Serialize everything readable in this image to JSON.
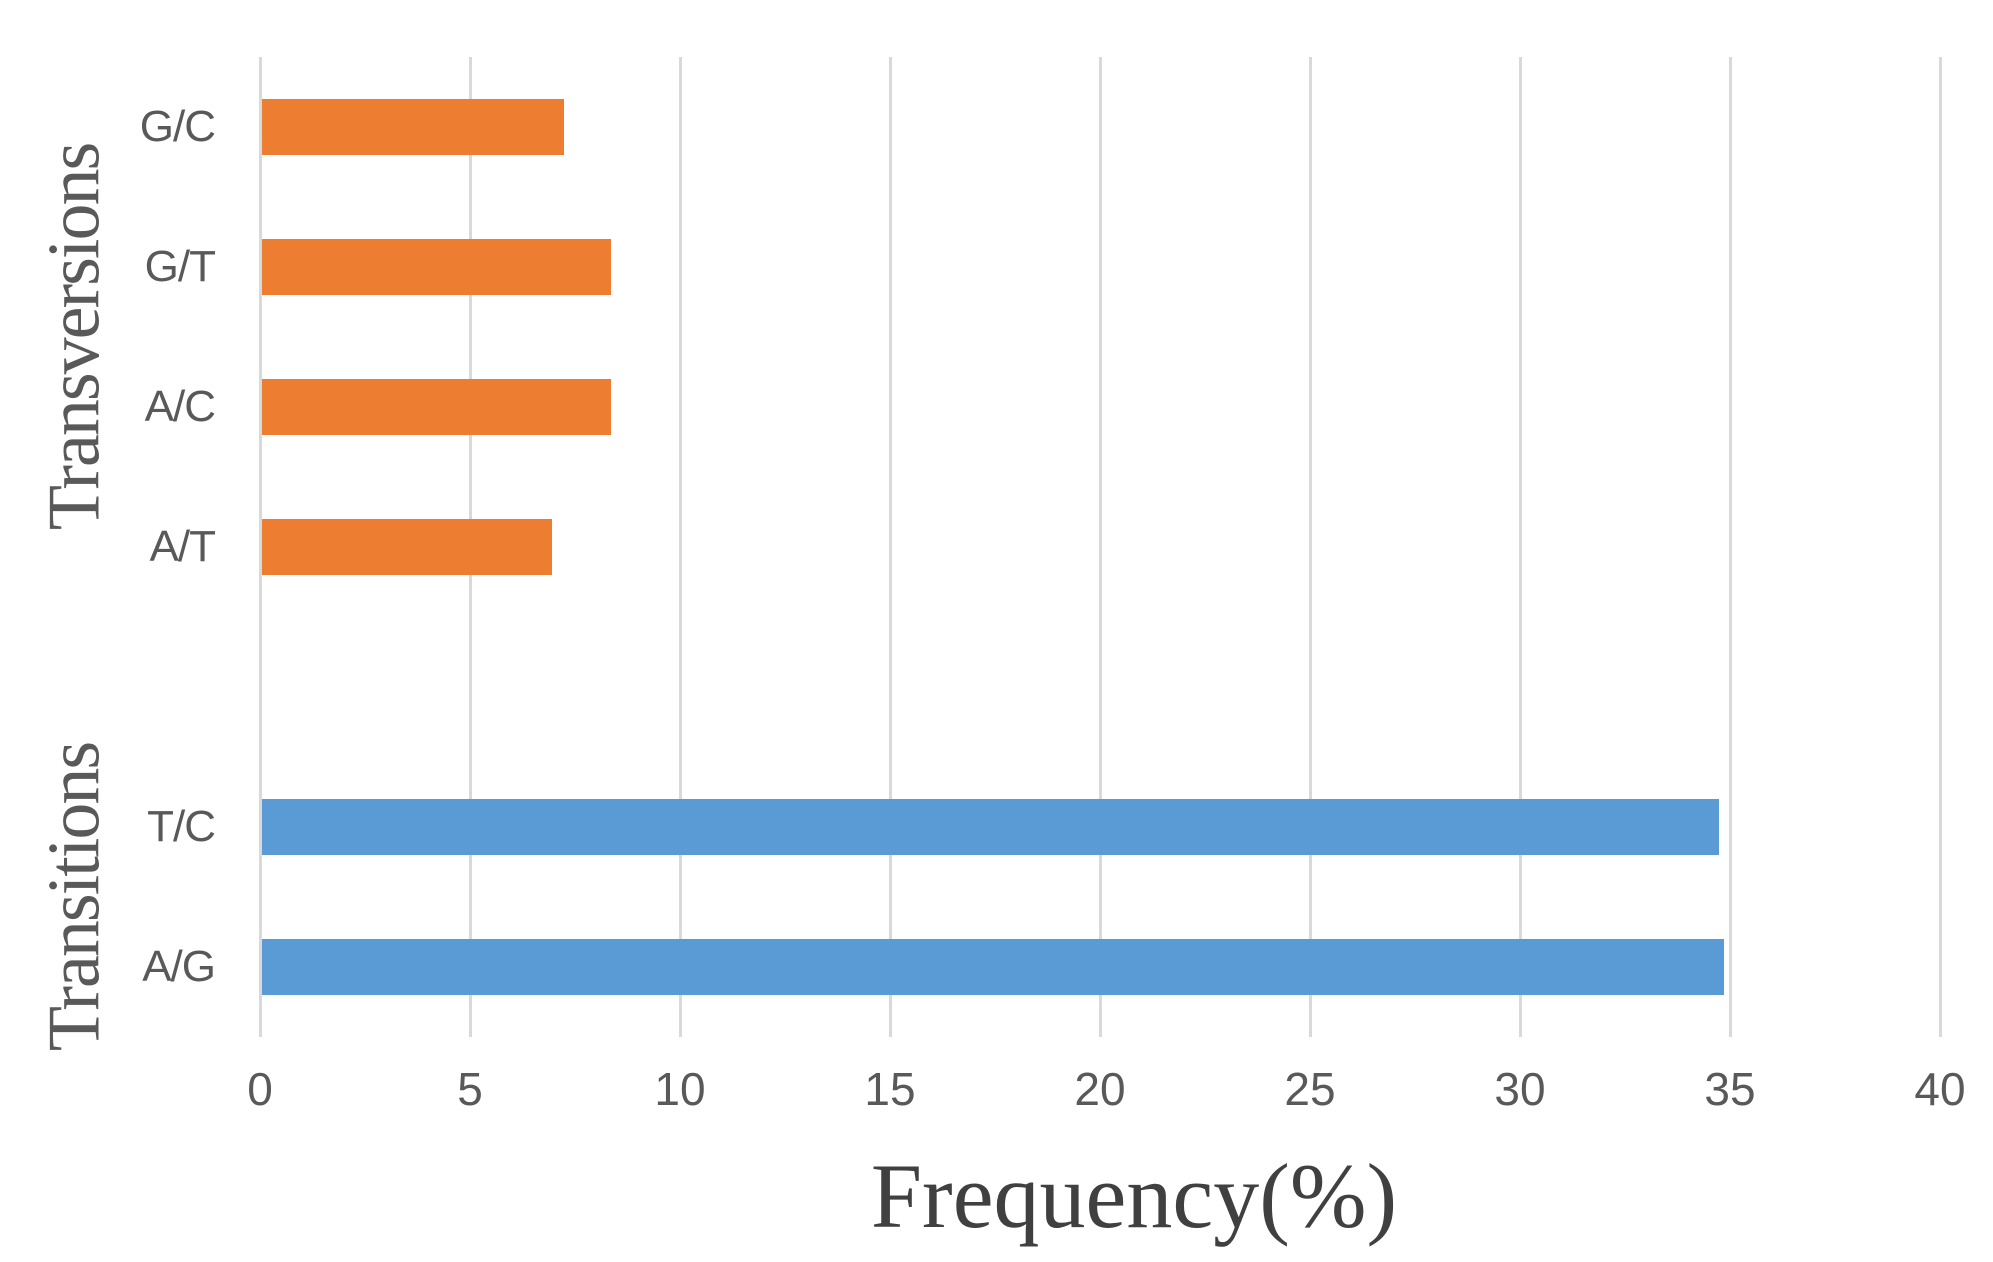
{
  "chart_data": {
    "type": "bar",
    "orientation": "horizontal",
    "title": "",
    "xlabel": "Frequency(%)",
    "ylabel": "",
    "xlim": [
      0,
      40
    ],
    "xticks": [
      0,
      5,
      10,
      15,
      20,
      25,
      30,
      35,
      40
    ],
    "grid": true,
    "legend": false,
    "band_count": 7,
    "groups": [
      {
        "label": "Transversions",
        "band_start": 0,
        "band_end": 3
      },
      {
        "label": "Transitions",
        "band_start": 5,
        "band_end": 6
      }
    ],
    "series": [
      {
        "name": "Transversions",
        "color": "#ED7D31",
        "points": [
          {
            "category": "G/C",
            "value": 7.2,
            "band": 0
          },
          {
            "category": "G/T",
            "value": 8.3,
            "band": 1
          },
          {
            "category": "A/C",
            "value": 8.3,
            "band": 2
          },
          {
            "category": "A/T",
            "value": 6.9,
            "band": 3
          }
        ]
      },
      {
        "name": "Transitions",
        "color": "#5B9BD5",
        "points": [
          {
            "category": "T/C",
            "value": 34.7,
            "band": 5
          },
          {
            "category": "A/G",
            "value": 34.8,
            "band": 6
          }
        ]
      }
    ],
    "colors": {
      "gridline": "#D9D9D9",
      "tick_text": "#595959",
      "title_text": "#404040"
    }
  }
}
